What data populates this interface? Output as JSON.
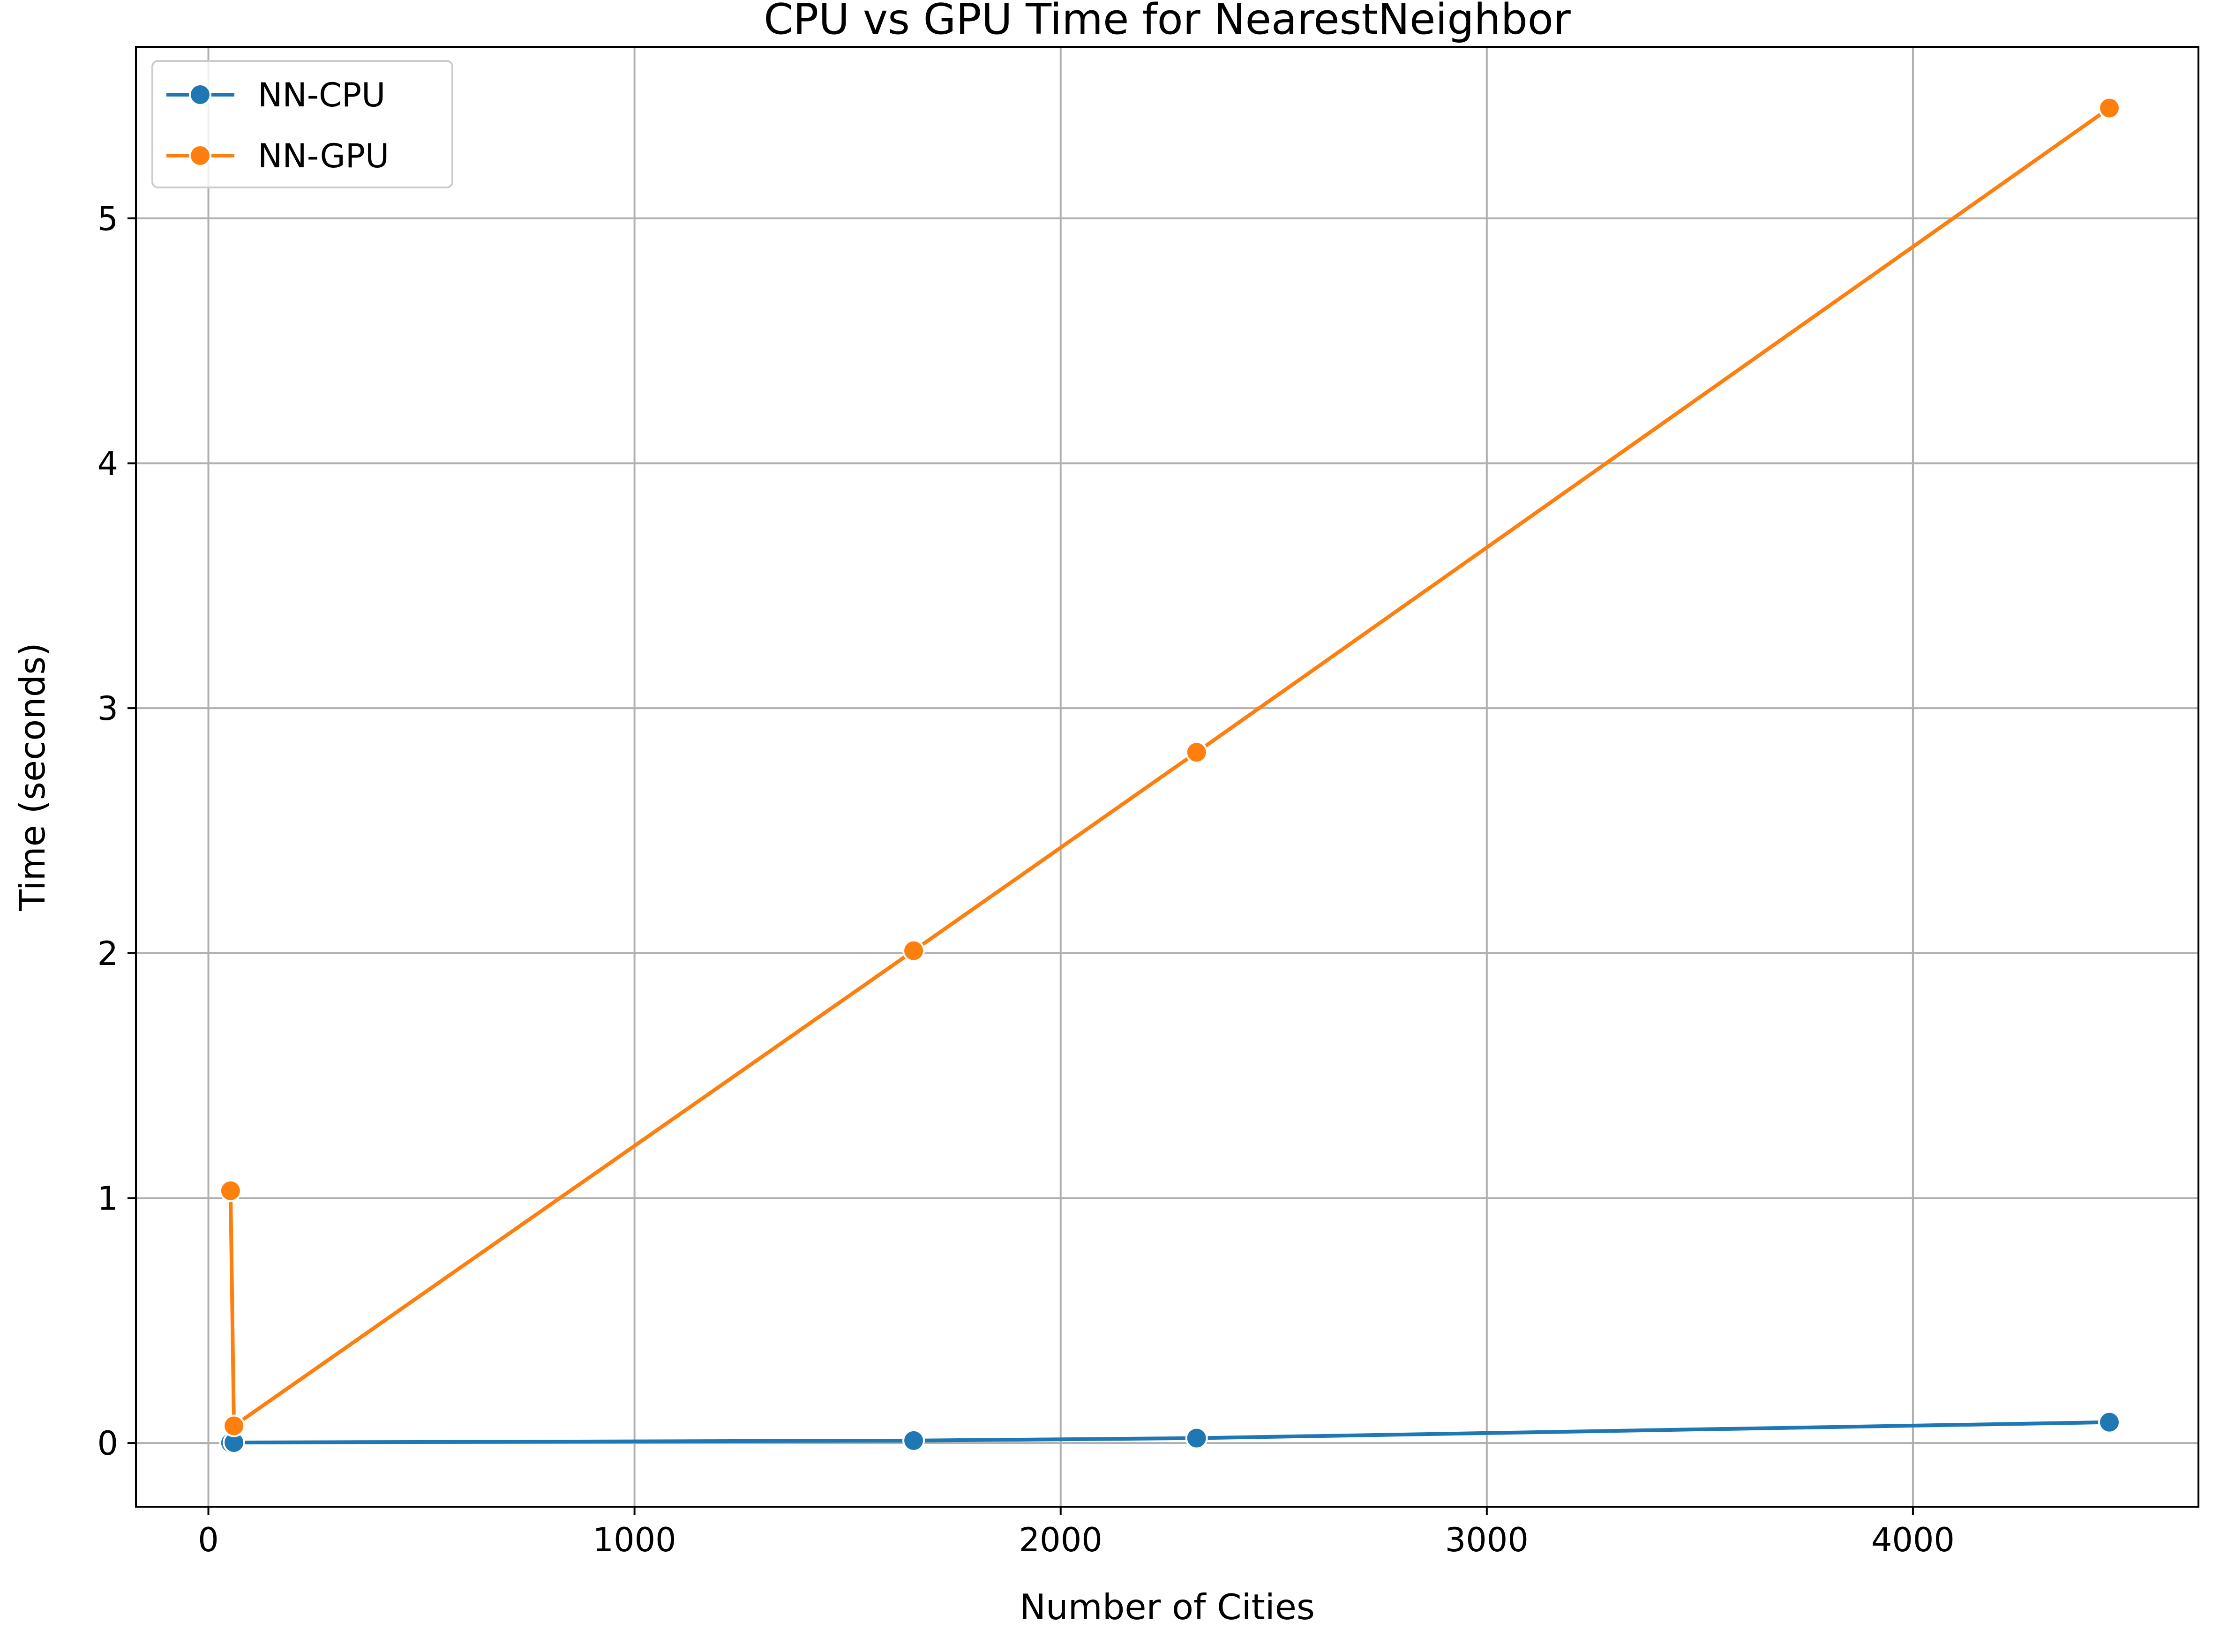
{
  "chart_data": {
    "type": "line",
    "title": "CPU vs GPU Time for NearestNeighbor",
    "xlabel": "Number of Cities",
    "ylabel": "Time (seconds)",
    "xlim": [
      -170,
      4670
    ],
    "ylim": [
      -0.26,
      5.7
    ],
    "xticks": [
      0,
      1000,
      2000,
      3000,
      4000
    ],
    "xtick_labels": [
      "0",
      "1000",
      "2000",
      "3000",
      "4000"
    ],
    "yticks": [
      0,
      1,
      2,
      3,
      4,
      5
    ],
    "ytick_labels": [
      "0",
      "1",
      "2",
      "3",
      "4",
      "5"
    ],
    "grid": true,
    "legend_position": "top-left",
    "series": [
      {
        "name": "NN-CPU",
        "color": "#1f77b4",
        "x": [
          52,
          60,
          1655,
          2319,
          4461
        ],
        "y": [
          0.001,
          0.002,
          0.01,
          0.02,
          0.085
        ]
      },
      {
        "name": "NN-GPU",
        "color": "#ff7f0e",
        "x": [
          52,
          60,
          1655,
          2319,
          4461
        ],
        "y": [
          1.03,
          0.07,
          2.01,
          2.82,
          5.45
        ]
      }
    ]
  }
}
